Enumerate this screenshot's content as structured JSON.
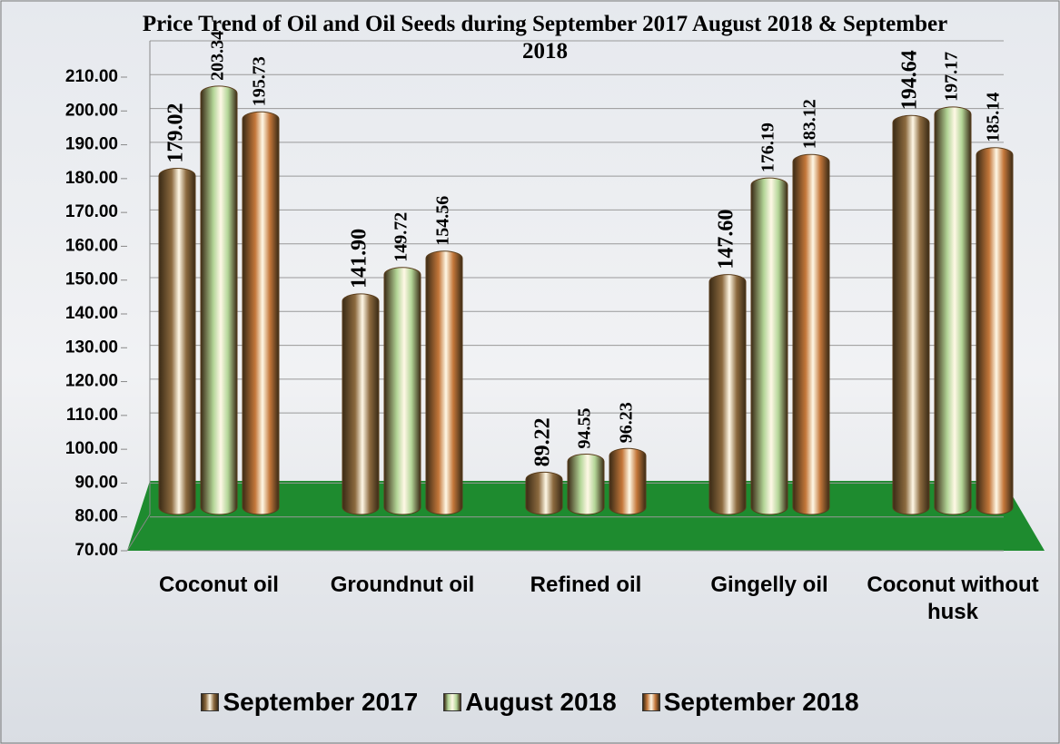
{
  "chart_data": {
    "type": "bar",
    "title": "Price Trend of Oil and Oil Seeds during  September 2017  August  2018 & September  2018",
    "categories": [
      "Coconut oil",
      "Groundnut oil",
      "Refined oil",
      "Gingelly oil",
      "Coconut without husk"
    ],
    "series": [
      {
        "name": "September 2017",
        "color": "#8c6a3f",
        "values": [
          179.02,
          141.9,
          89.22,
          147.6,
          194.64
        ],
        "value_labels": [
          "179.02",
          "141.90",
          "89.22",
          "147.60",
          "194.64"
        ]
      },
      {
        "name": "August  2018",
        "color": "#b3d597",
        "values": [
          203.34,
          149.72,
          94.55,
          176.19,
          197.17
        ],
        "value_labels": [
          "203.34",
          "149.72",
          "94.55",
          "176.19",
          "197.17"
        ]
      },
      {
        "name": "September 2018",
        "color": "#c4773a",
        "values": [
          195.73,
          154.56,
          96.23,
          183.12,
          185.14
        ],
        "value_labels": [
          "195.73",
          "154.56",
          "96.23",
          "183.12",
          "185.14"
        ]
      }
    ],
    "ylim": [
      70,
      210
    ],
    "yticks": [
      {
        "value": 70,
        "label": "70.00"
      },
      {
        "value": 80,
        "label": "80.00"
      },
      {
        "value": 90,
        "label": "90.00"
      },
      {
        "value": 100,
        "label": "100.00"
      },
      {
        "value": 110,
        "label": "110.00"
      },
      {
        "value": 120,
        "label": "120.00"
      },
      {
        "value": 130,
        "label": "130.00"
      },
      {
        "value": 140,
        "label": "140.00"
      },
      {
        "value": 150,
        "label": "150.00"
      },
      {
        "value": 160,
        "label": "160.00"
      },
      {
        "value": 170,
        "label": "170.00"
      },
      {
        "value": 180,
        "label": "180.00"
      },
      {
        "value": 190,
        "label": "190.00"
      },
      {
        "value": 200,
        "label": "200.00"
      },
      {
        "value": 210,
        "label": "210.00"
      }
    ],
    "grid": true,
    "legend": "bottom"
  }
}
